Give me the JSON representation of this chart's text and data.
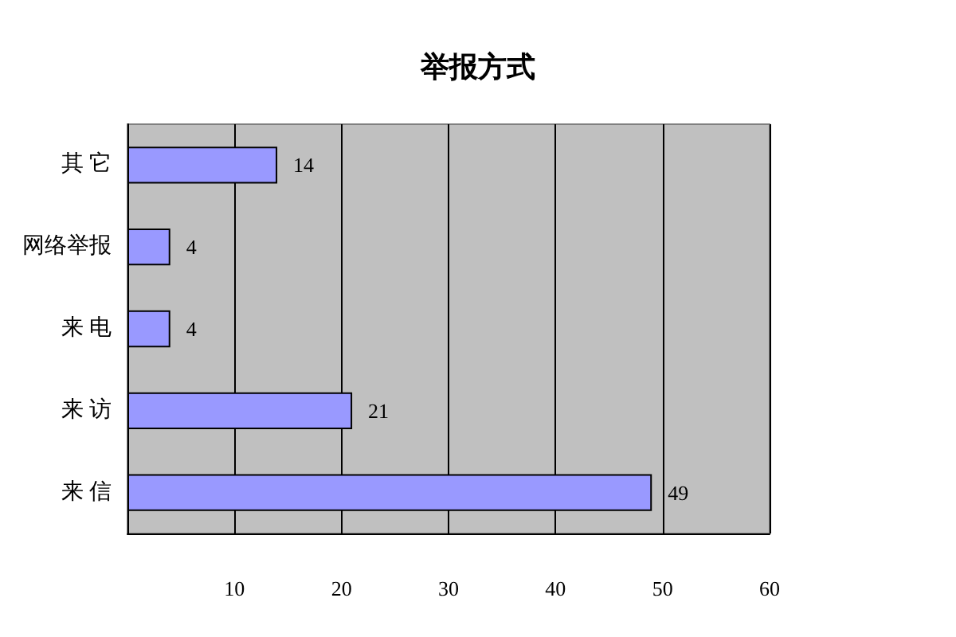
{
  "chart_data": {
    "type": "bar",
    "orientation": "horizontal",
    "title": "举报方式",
    "categories": [
      "其 它",
      "网络举报",
      "来 电",
      "来 访",
      "来 信"
    ],
    "values": [
      14,
      4,
      4,
      21,
      49
    ],
    "color": "#9999ff",
    "xlim": [
      0,
      60
    ],
    "xticks": [
      {
        "value": 0,
        "label": null
      },
      10,
      20,
      30,
      40,
      50,
      60
    ],
    "grid": "x",
    "data_labels": true
  }
}
